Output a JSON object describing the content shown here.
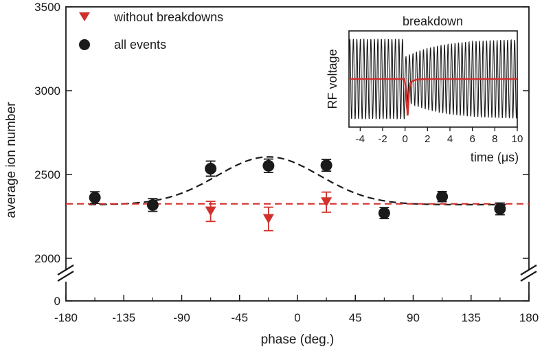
{
  "chart_data": [
    {
      "type": "scatter",
      "title": "",
      "xlabel": "phase (deg.)",
      "ylabel": "average ion number",
      "xlim": [
        -180,
        180
      ],
      "x_ticks": [
        -180,
        -135,
        -90,
        -45,
        0,
        45,
        90,
        135,
        180
      ],
      "x_tick_labels": [
        "-180",
        "-135",
        "-90",
        "-45",
        "0",
        "45",
        "90",
        "135",
        "180"
      ],
      "y_axis_break": true,
      "y_ticks": [
        0,
        2000,
        2500,
        3000,
        3500
      ],
      "y_tick_labels": [
        "0",
        "2000",
        "2500",
        "3000",
        "3500"
      ],
      "ylim_upper": [
        1750,
        3500
      ],
      "grid": false,
      "legend_position": "top-left",
      "legend": [
        "without breakdowns",
        "all events"
      ],
      "series": [
        {
          "name": "without breakdowns",
          "marker": "triangle-down",
          "color": "#d0312d",
          "points": [
            {
              "x": -67.5,
              "y": 2280,
              "err": 60
            },
            {
              "x": -22.5,
              "y": 2235,
              "err": 70
            },
            {
              "x": 22.5,
              "y": 2335,
              "err": 60
            }
          ]
        },
        {
          "name": "all events",
          "marker": "circle",
          "color": "#1a1a1a",
          "points": [
            {
              "x": -157.5,
              "y": 2362,
              "err": 35
            },
            {
              "x": -112.5,
              "y": 2318,
              "err": 38
            },
            {
              "x": -67.5,
              "y": 2535,
              "err": 45
            },
            {
              "x": -22.5,
              "y": 2552,
              "err": 40
            },
            {
              "x": 22.5,
              "y": 2555,
              "err": 35
            },
            {
              "x": 67.5,
              "y": 2270,
              "err": 33
            },
            {
              "x": 112.5,
              "y": 2368,
              "err": 30
            },
            {
              "x": 157.5,
              "y": 2295,
              "err": 35
            }
          ]
        }
      ],
      "fits": [
        {
          "name": "gaussian fit (all events)",
          "style": "dashed",
          "color": "#1a1a1a",
          "baseline": 2320,
          "amplitude": 285,
          "center": -22.5,
          "sigma": 40,
          "x_range": [
            -162,
            162
          ]
        },
        {
          "name": "constant (without breakdowns)",
          "style": "dashed",
          "color": "#d0312d",
          "value": 2325,
          "x_range": [
            -180,
            180
          ]
        }
      ]
    },
    {
      "type": "line",
      "title": "breakdown",
      "xlabel": "time (μs)",
      "ylabel": "RF voltage",
      "xlim": [
        -5,
        10
      ],
      "x_ticks": [
        -4,
        -2,
        0,
        2,
        4,
        6,
        8,
        10
      ],
      "x_tick_labels": [
        "-4",
        "-2",
        "0",
        "2",
        "4",
        "6",
        "8",
        "10"
      ],
      "ylim": [
        -1.2,
        1.2
      ],
      "y_tick_labels": [],
      "series": [
        {
          "name": "RF signal",
          "color": "#1a1a1a",
          "frequency_per_us": 3.2,
          "amplitude_before": 1.0,
          "amplitude_after_drop": 0.55,
          "recovery_tau_us": 3.0,
          "breakdown_time_us": 0
        },
        {
          "name": "breakdown signal",
          "color": "#d0312d",
          "baseline": 0,
          "dip_time_us": 0.2,
          "dip_depth": -0.75
        }
      ]
    }
  ]
}
